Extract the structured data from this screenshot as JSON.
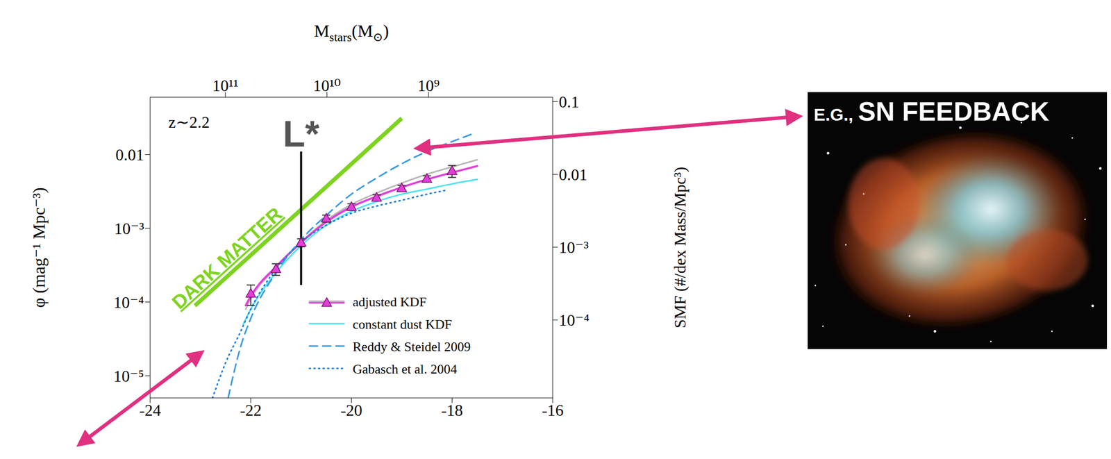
{
  "chart_data": {
    "type": "line",
    "y_label": "φ (mag⁻¹ Mpc⁻³)",
    "y2_label": "SMF (#/dex Mass/Mpc³)",
    "x2_label": "Mstars(M⊙)",
    "xlim": [
      -24,
      -16
    ],
    "xticks": [
      -24,
      -22,
      -20,
      -18,
      -16
    ],
    "x2lim": [
      550000000000,
      60000000
    ],
    "x2ticks": [
      {
        "value": 100000000000,
        "label": "10¹¹"
      },
      {
        "value": 10000000000,
        "label": "10¹⁰"
      },
      {
        "value": 1000000000,
        "label": "10⁹"
      }
    ],
    "ylim": [
      5e-06,
      0.06
    ],
    "yticks": [
      {
        "value": 1e-05,
        "label": "10⁻⁵"
      },
      {
        "value": 0.0001,
        "label": "10⁻⁴"
      },
      {
        "value": 0.001,
        "label": "10⁻³"
      },
      0.01
    ],
    "y2lim": [
      8.5e-06,
      0.115
    ],
    "y2ticks": [
      {
        "value": 0.0001,
        "label": "10⁻⁴"
      },
      {
        "value": 0.001,
        "label": "10⁻³"
      },
      0.01,
      0.1
    ],
    "log": "y",
    "legend": "lower right",
    "series": [
      {
        "name": "adjusted KDF",
        "type": "line",
        "color": "#b8b8b8",
        "line_style": "solid",
        "x": [
          -22.1,
          -22,
          -21.5,
          -21,
          -20.5,
          -20,
          -19.5,
          -19,
          -18.5,
          -18,
          -17.5
        ],
        "values": [
          8e-05,
          0.00011,
          0.00029,
          0.00065,
          0.00128,
          0.0021,
          0.003,
          0.0041,
          0.0054,
          0.0068,
          0.0085
        ]
      },
      {
        "name": "adjusted KDF",
        "type": "line",
        "color": "#e23fd8",
        "line_style": "solid",
        "x": [
          -22.1,
          -22,
          -21.5,
          -21,
          -20.5,
          -20,
          -19.5,
          -19,
          -18.5,
          -18,
          -17.5
        ],
        "values": [
          9e-05,
          0.00012,
          0.0003,
          0.00064,
          0.00122,
          0.00195,
          0.0027,
          0.0036,
          0.0046,
          0.0057,
          0.007
        ]
      },
      {
        "name": "adjusted KDF",
        "type": "scatter",
        "color": "#e23fd8",
        "marker": "triangle",
        "x": [
          -22,
          -21.5,
          -21,
          -20.5,
          -20,
          -19.5,
          -19,
          -18.5,
          -18
        ],
        "values": [
          0.00013,
          0.00028,
          0.00064,
          0.00136,
          0.00195,
          0.0026,
          0.0035,
          0.0047,
          0.006
        ],
        "errors": [
          4e-05,
          5e-05,
          8e-05,
          0.00015,
          0.0002,
          0.00025,
          0.0003,
          0.00045,
          0.0011
        ]
      },
      {
        "name": "constant dust KDF",
        "type": "line",
        "color": "#4fe3ef",
        "line_style": "solid",
        "x": [
          -22.15,
          -22,
          -21.5,
          -21,
          -20.5,
          -20,
          -19.5,
          -19,
          -18.5,
          -18,
          -17.5
        ],
        "values": [
          5e-05,
          8e-05,
          0.00025,
          0.00058,
          0.0011,
          0.0017,
          0.0023,
          0.0029,
          0.0034,
          0.004,
          0.0046
        ]
      },
      {
        "name": "Reddy & Steidel 2009",
        "type": "line",
        "color": "#3b9be0",
        "line_style": "dashed",
        "x": [
          -22.45,
          -22.2,
          -22,
          -21.5,
          -21,
          -20.5,
          -20,
          -19.5,
          -19,
          -18.5,
          -18,
          -17.6
        ],
        "values": [
          5e-06,
          2.5e-05,
          6e-05,
          0.00025,
          0.0007,
          0.0015,
          0.0029,
          0.0048,
          0.0075,
          0.011,
          0.015,
          0.019
        ]
      },
      {
        "name": "Gabasch et al. 2004",
        "type": "line",
        "color": "#1e7fd6",
        "line_style": "dotted",
        "x": [
          -22.76,
          -22.5,
          -22.2,
          -22,
          -21.5,
          -21,
          -20.5,
          -20,
          -19.5,
          -19,
          -18.5,
          -18.1
        ],
        "values": [
          5e-06,
          1.5e-05,
          4e-05,
          8e-05,
          0.00028,
          0.00065,
          0.0011,
          0.0016,
          0.002,
          0.0024,
          0.0029,
          0.0033
        ]
      }
    ],
    "annotations": {
      "redshift": "z∼2.2",
      "l_star": {
        "text": "L*",
        "x": -21,
        "y_range": [
          0.00017,
          0.011
        ],
        "color": "#555555"
      },
      "dark_matter": {
        "text": "DARK MATTER",
        "x_range": [
          -23.11,
          -19.0
        ],
        "y_range": [
          8.9e-05,
          0.031
        ],
        "color": "#7ed320"
      },
      "feedback": "E.G., SN FEEDBACK"
    }
  }
}
